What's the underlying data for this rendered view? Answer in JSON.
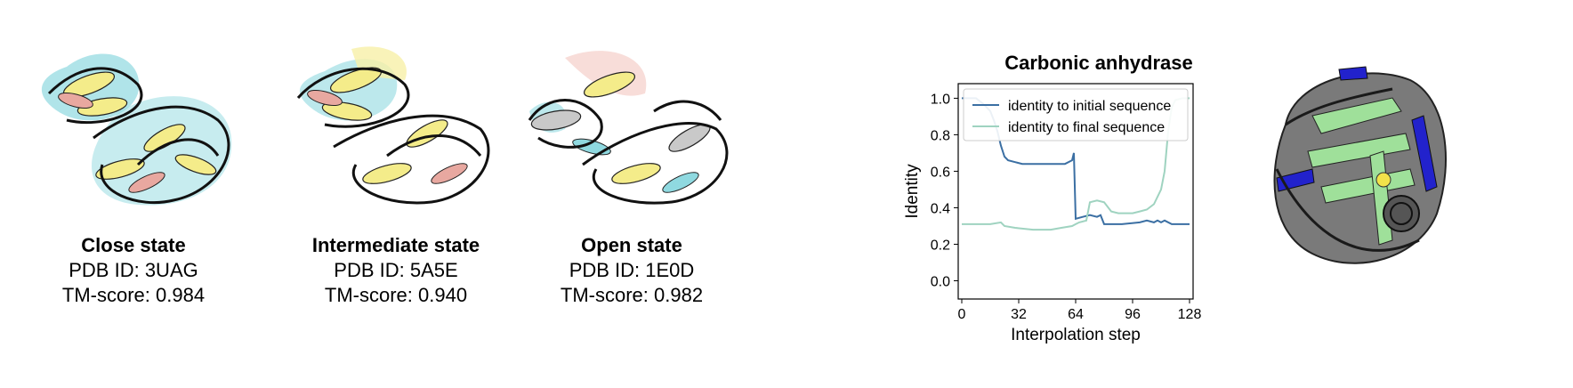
{
  "panels": [
    {
      "name": "Close state",
      "pdb": "PDB ID: 3UAG",
      "tm": "TM-score: 0.984"
    },
    {
      "name": "Intermediate state",
      "pdb": "PDB ID: 5A5E",
      "tm": "TM-score: 0.940"
    },
    {
      "name": "Open state",
      "pdb": "PDB ID: 1E0D",
      "tm": "TM-score: 0.982"
    }
  ],
  "chart_data": {
    "type": "line",
    "title": "Carbonic anhydrase",
    "xlabel": "Interpolation step",
    "ylabel": "Identity",
    "xlim": [
      -2,
      130
    ],
    "ylim": [
      -0.1,
      1.08
    ],
    "xticks": [
      0,
      32,
      64,
      96,
      128
    ],
    "yticks": [
      0.0,
      0.2,
      0.4,
      0.6,
      0.8,
      1.0
    ],
    "grid": false,
    "legend_position": "top",
    "series": [
      {
        "name": "identity to initial sequence",
        "color": "#3b6fa3",
        "points": [
          [
            0,
            1.0
          ],
          [
            4,
            1.0
          ],
          [
            8,
            1.0
          ],
          [
            12,
            0.97
          ],
          [
            16,
            0.93
          ],
          [
            18,
            0.88
          ],
          [
            20,
            0.82
          ],
          [
            22,
            0.74
          ],
          [
            24,
            0.68
          ],
          [
            26,
            0.66
          ],
          [
            30,
            0.65
          ],
          [
            34,
            0.64
          ],
          [
            40,
            0.64
          ],
          [
            50,
            0.64
          ],
          [
            58,
            0.64
          ],
          [
            62,
            0.66
          ],
          [
            63,
            0.7
          ],
          [
            64,
            0.34
          ],
          [
            68,
            0.35
          ],
          [
            72,
            0.36
          ],
          [
            76,
            0.35
          ],
          [
            78,
            0.36
          ],
          [
            80,
            0.31
          ],
          [
            84,
            0.31
          ],
          [
            90,
            0.31
          ],
          [
            100,
            0.32
          ],
          [
            104,
            0.33
          ],
          [
            108,
            0.32
          ],
          [
            110,
            0.33
          ],
          [
            112,
            0.32
          ],
          [
            114,
            0.33
          ],
          [
            118,
            0.31
          ],
          [
            124,
            0.31
          ],
          [
            128,
            0.31
          ]
        ]
      },
      {
        "name": "identity to final sequence",
        "color": "#9fd3c0",
        "points": [
          [
            0,
            0.31
          ],
          [
            8,
            0.31
          ],
          [
            16,
            0.31
          ],
          [
            22,
            0.32
          ],
          [
            24,
            0.3
          ],
          [
            30,
            0.29
          ],
          [
            40,
            0.28
          ],
          [
            50,
            0.28
          ],
          [
            56,
            0.29
          ],
          [
            62,
            0.3
          ],
          [
            64,
            0.31
          ],
          [
            66,
            0.32
          ],
          [
            70,
            0.33
          ],
          [
            72,
            0.43
          ],
          [
            76,
            0.44
          ],
          [
            80,
            0.43
          ],
          [
            84,
            0.38
          ],
          [
            88,
            0.37
          ],
          [
            96,
            0.37
          ],
          [
            100,
            0.38
          ],
          [
            104,
            0.39
          ],
          [
            108,
            0.42
          ],
          [
            112,
            0.5
          ],
          [
            114,
            0.6
          ],
          [
            116,
            0.82
          ],
          [
            118,
            0.95
          ],
          [
            120,
            0.99
          ],
          [
            124,
            1.0
          ],
          [
            128,
            1.0
          ]
        ]
      }
    ]
  }
}
